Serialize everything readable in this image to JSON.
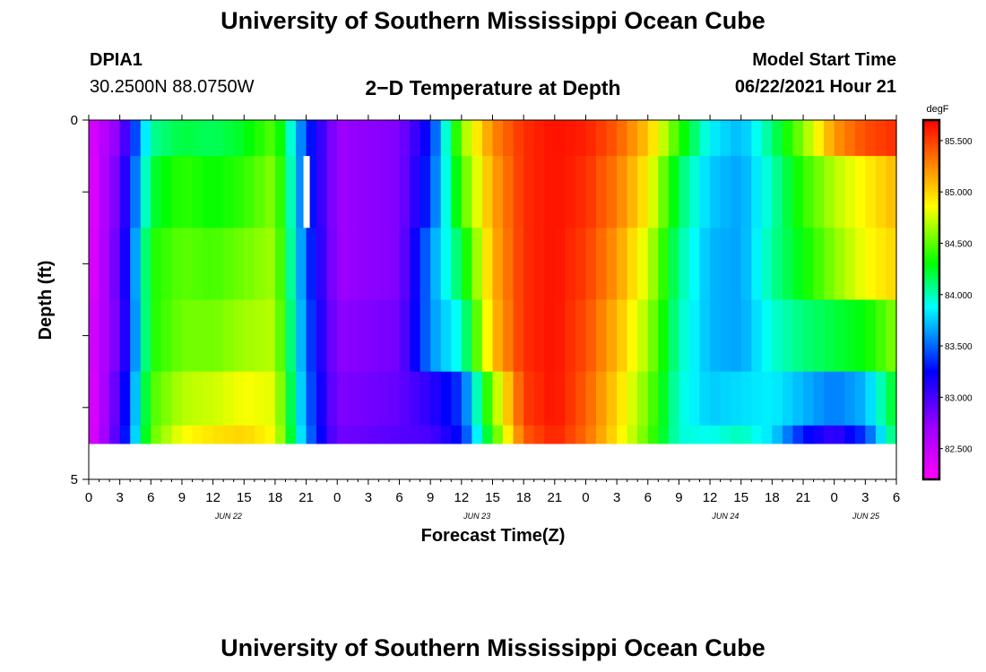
{
  "header": {
    "title": "University of Southern Mississippi Ocean Cube",
    "station_id": "DPIA1",
    "station_location": "30.2500N  88.0750W",
    "plot_title": "2−D Temperature at Depth",
    "model_start_label": "Model Start Time",
    "model_start_value": "06/22/2021 Hour 21"
  },
  "footer": {
    "title": "University of Southern Mississippi Ocean Cube"
  },
  "chart_data": {
    "type": "heatmap",
    "title": "2−D Temperature at Depth",
    "xlabel": "Forecast Time(Z)",
    "ylabel": "Depth (ft)",
    "ylim": [
      5,
      0
    ],
    "y_tick_labels": [
      "0",
      "5"
    ],
    "x_tick_labels": [
      "0",
      "3",
      "6",
      "9",
      "12",
      "15",
      "18",
      "21",
      "0",
      "3",
      "6",
      "9",
      "12",
      "15",
      "18",
      "21",
      "0",
      "3",
      "6",
      "9",
      "12",
      "15",
      "18",
      "21",
      "0",
      "3",
      "6"
    ],
    "date_labels": [
      "JUN 22",
      "JUN 23",
      "JUN 24",
      "JUN 25"
    ],
    "colorbar": {
      "unit": "degF",
      "range": [
        82.2,
        85.7
      ],
      "tick_labels": [
        "82.500",
        "83.000",
        "83.500",
        "84.000",
        "84.500",
        "85.000",
        "85.500"
      ],
      "tick_values": [
        82.5,
        83.0,
        83.5,
        84.0,
        84.5,
        85.0,
        85.5
      ],
      "colors": [
        "#ff00ff",
        "#a000ff",
        "#0000ff",
        "#00ffff",
        "#00ff00",
        "#ffff00",
        "#ff8000",
        "#ff0000"
      ]
    },
    "hours": [
      0,
      3,
      6,
      9,
      12,
      15,
      18,
      21,
      24,
      27,
      30,
      33,
      36,
      39,
      42,
      45,
      48,
      51,
      54,
      57,
      60,
      63,
      66,
      69,
      72,
      75,
      78
    ],
    "depths": [
      0.25,
      0.75,
      1.75,
      2.75,
      3.75,
      4.75
    ],
    "series": [
      {
        "name": "0.25 ft",
        "values": [
          82.35,
          82.8,
          84.05,
          84.2,
          84.15,
          84.25,
          84.5,
          83.4,
          82.7,
          82.75,
          82.8,
          83.3,
          84.6,
          85.25,
          85.55,
          85.65,
          85.6,
          85.4,
          85.05,
          84.4,
          83.85,
          83.7,
          84.1,
          84.6,
          85.2,
          85.45,
          85.55
        ]
      },
      {
        "name": "0.75 ft",
        "values": [
          82.3,
          82.9,
          84.2,
          84.4,
          84.3,
          84.4,
          84.6,
          83.4,
          82.7,
          82.75,
          82.8,
          83.4,
          84.45,
          85.15,
          85.55,
          85.65,
          85.55,
          85.3,
          84.9,
          84.15,
          83.75,
          83.65,
          84.0,
          84.4,
          84.7,
          84.9,
          85.1
        ]
      },
      {
        "name": "1.75 ft",
        "values": [
          82.3,
          82.95,
          84.35,
          84.5,
          84.45,
          84.55,
          84.65,
          83.45,
          82.7,
          82.75,
          82.8,
          83.6,
          84.2,
          85.1,
          85.55,
          85.65,
          85.5,
          85.2,
          84.75,
          84.05,
          83.7,
          83.65,
          84.05,
          84.3,
          84.6,
          84.85,
          85.0
        ]
      },
      {
        "name": "2.75 ft",
        "values": [
          82.35,
          82.9,
          84.35,
          84.55,
          84.55,
          84.65,
          84.7,
          83.5,
          82.75,
          82.8,
          82.85,
          83.6,
          83.95,
          85.05,
          85.55,
          85.65,
          85.45,
          85.1,
          84.65,
          84.0,
          83.7,
          83.65,
          83.95,
          84.1,
          84.2,
          84.3,
          84.6
        ]
      },
      {
        "name": "3.75 ft",
        "values": [
          82.3,
          83.0,
          84.45,
          84.7,
          84.75,
          84.85,
          84.8,
          83.55,
          82.8,
          82.85,
          82.9,
          83.1,
          83.4,
          84.6,
          85.5,
          85.65,
          85.4,
          85.0,
          84.55,
          83.95,
          83.75,
          83.8,
          83.85,
          83.7,
          83.55,
          83.7,
          84.3
        ]
      },
      {
        "name": "4.75 ft",
        "values": [
          82.3,
          83.05,
          84.5,
          84.85,
          84.95,
          85.0,
          84.85,
          83.6,
          82.85,
          82.9,
          82.95,
          83.0,
          83.3,
          84.4,
          85.4,
          85.6,
          85.35,
          84.95,
          84.5,
          83.95,
          83.9,
          84.0,
          83.8,
          83.3,
          83.05,
          83.4,
          84.2
        ]
      }
    ],
    "marker": {
      "type": "vertical-bar",
      "hour": 21,
      "depth_range": [
        0.5,
        1.5
      ]
    },
    "grid": false,
    "legend": "colorbar-right"
  }
}
